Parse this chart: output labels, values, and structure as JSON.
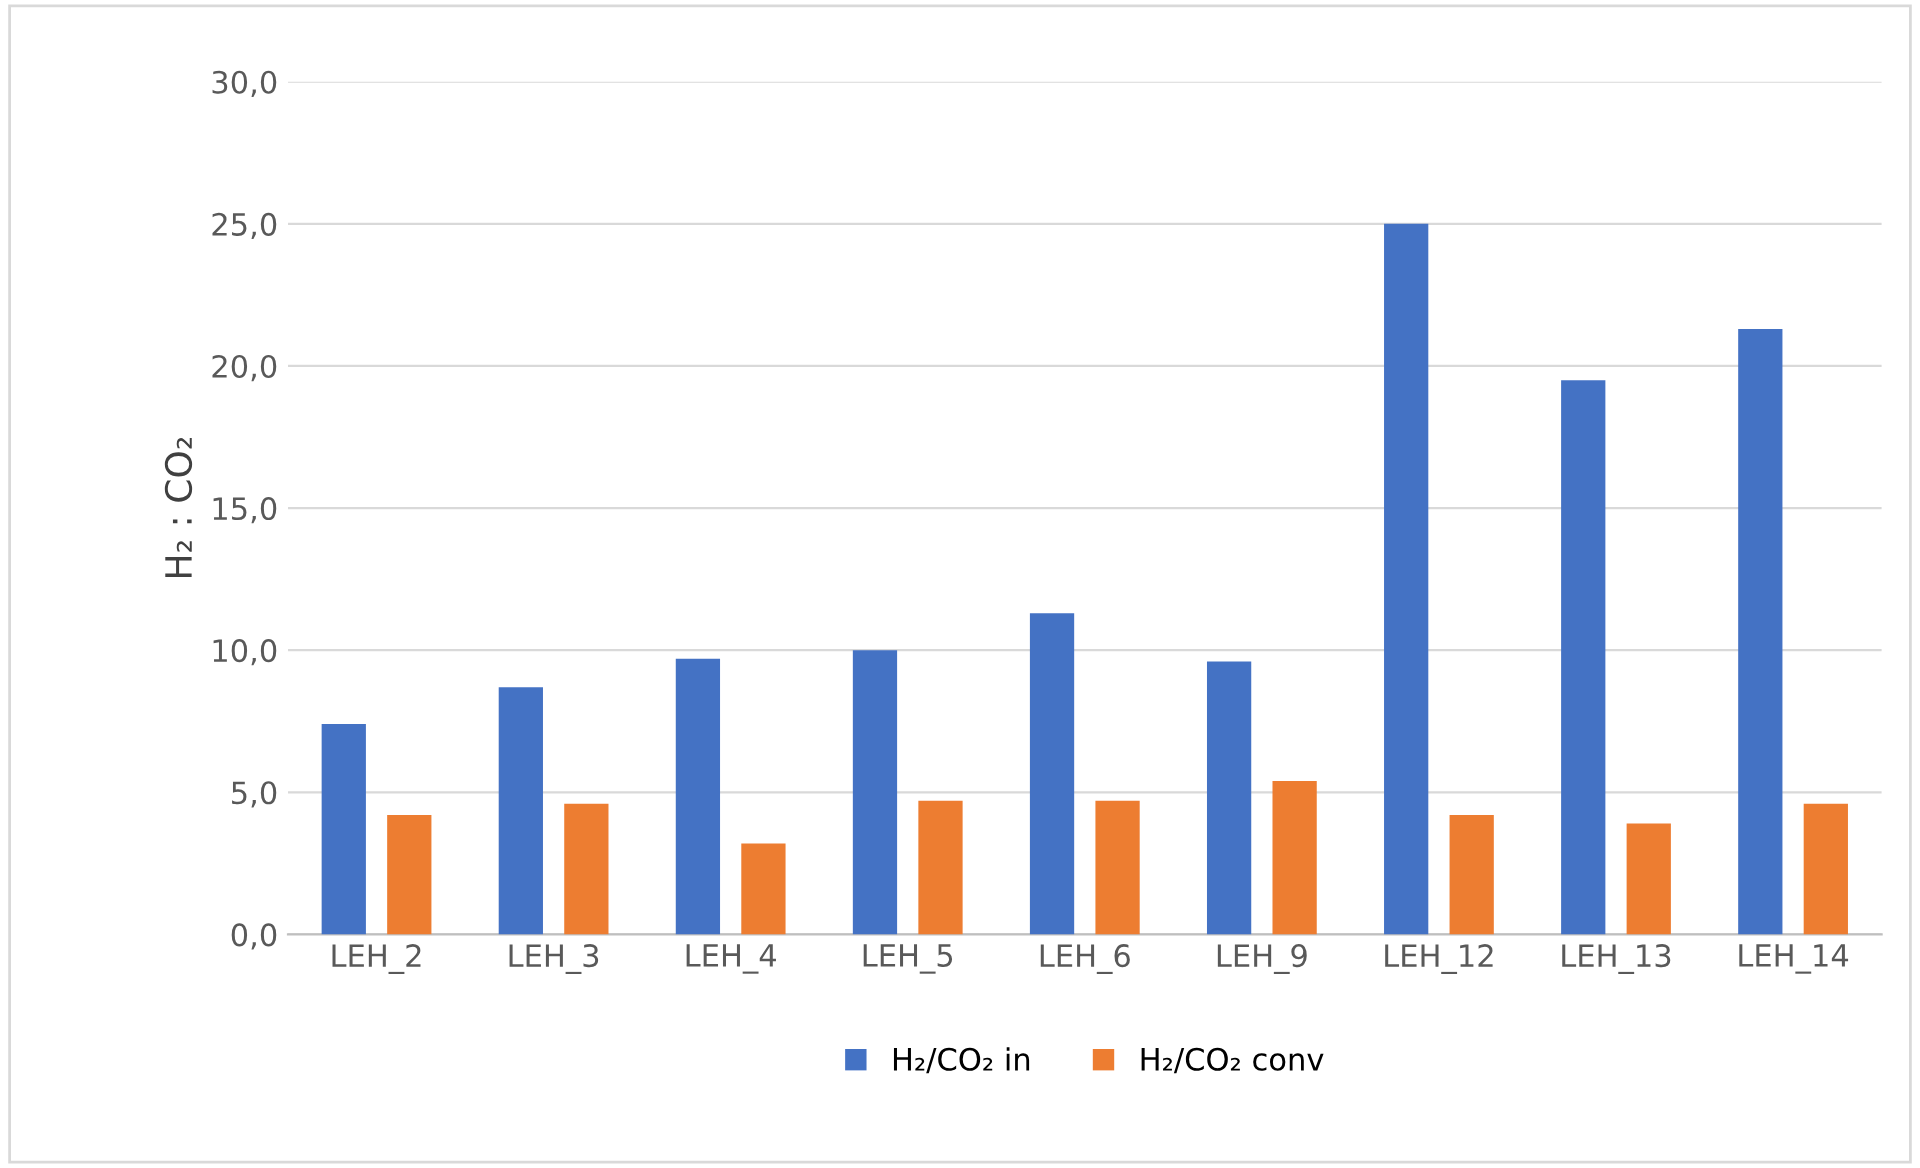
{
  "chart_data": {
    "type": "bar",
    "ylabel": "H₂ : CO₂",
    "categories": [
      "LEH_2",
      "LEH_3",
      "LEH_4",
      "LEH_5",
      "LEH_6",
      "LEH_9",
      "LEH_12",
      "LEH_13",
      "LEH_14"
    ],
    "series": [
      {
        "name": "H₂/CO₂ in",
        "color": "#4472c4",
        "values": [
          7.4,
          8.7,
          9.7,
          10.0,
          11.3,
          9.6,
          25.0,
          19.5,
          21.3
        ]
      },
      {
        "name": "H₂/CO₂ conv",
        "color": "#ed7d31",
        "values": [
          4.2,
          4.6,
          3.2,
          4.7,
          4.7,
          5.4,
          4.2,
          3.9,
          4.6
        ]
      }
    ],
    "ylim": [
      0,
      30
    ],
    "yticks": [
      {
        "value": 0,
        "label": "0,0"
      },
      {
        "value": 5,
        "label": "5,0"
      },
      {
        "value": 10,
        "label": "10,0"
      },
      {
        "value": 15,
        "label": "15,0"
      },
      {
        "value": 20,
        "label": "20,0"
      },
      {
        "value": 25,
        "label": "25,0"
      },
      {
        "value": 30,
        "label": "30,0"
      }
    ],
    "grid": "y",
    "legend": "bottom"
  }
}
